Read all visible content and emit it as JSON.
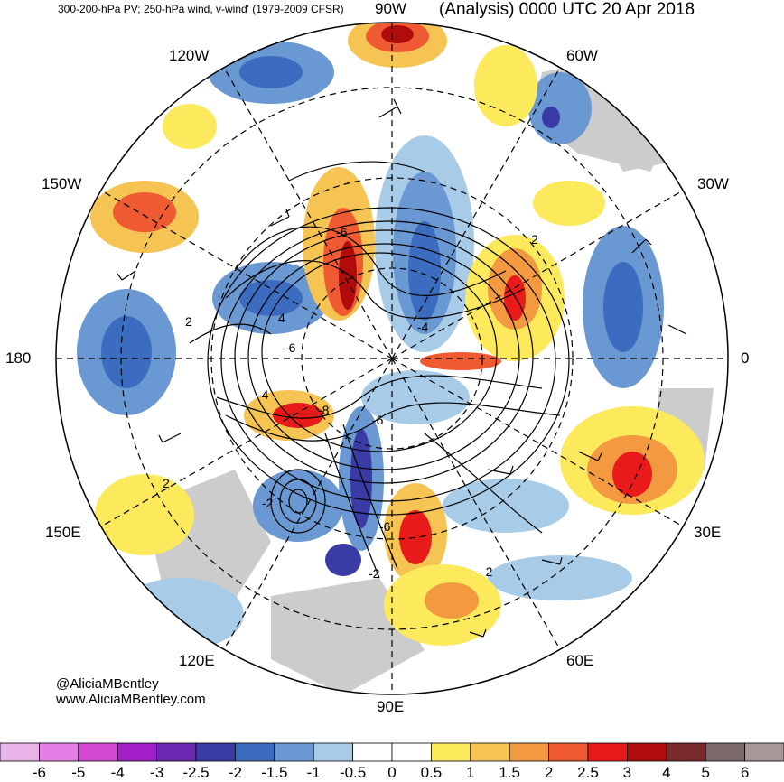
{
  "header": {
    "title_left": "300-200-hPa PV; 250-hPa wind, v-wind' (1979-2009 CFSR)",
    "title_right": "(Analysis) 0000 UTC 20 Apr 2018"
  },
  "longitude_labels": {
    "90W": "90W",
    "120W": "120W",
    "60W": "60W",
    "150W": "150W",
    "30W": "30W",
    "180": "180",
    "0": "0",
    "150E": "150E",
    "30E": "30E",
    "120E": "120E",
    "60E": "60E",
    "90E": "90E"
  },
  "contour_labels": [
    "-6",
    "2",
    "2",
    "4",
    "-4",
    "-6",
    "-6",
    "-8",
    "-4",
    "2",
    "-2",
    "-6",
    "-2",
    "-2"
  ],
  "credits": {
    "handle": "@AliciaMBentley",
    "site": "www.AliciaMBentley.com"
  },
  "colorbar": {
    "labels": [
      "-6",
      "-5",
      "-4",
      "-3",
      "-2.5",
      "-2",
      "-1.5",
      "-1",
      "-0.5",
      "0",
      "0.5",
      "1",
      "1.5",
      "2",
      "2.5",
      "3",
      "4",
      "5",
      "6"
    ],
    "colors": [
      "#e8b4e8",
      "#e57ee5",
      "#d44ad4",
      "#a21ec8",
      "#6a28b0",
      "#3b3ba6",
      "#3c6cc0",
      "#6a98d2",
      "#a8cbe8",
      "#ffffff",
      "#ffffff",
      "#fde95c",
      "#f6c453",
      "#f39a40",
      "#ef5a33",
      "#e81a1a",
      "#b00c0c",
      "#7a2a2a",
      "#7c6a6a",
      "#a89898"
    ]
  },
  "colors": {
    "land": "#cccccc",
    "ocean": "#ffffff",
    "contour": "#000000"
  }
}
